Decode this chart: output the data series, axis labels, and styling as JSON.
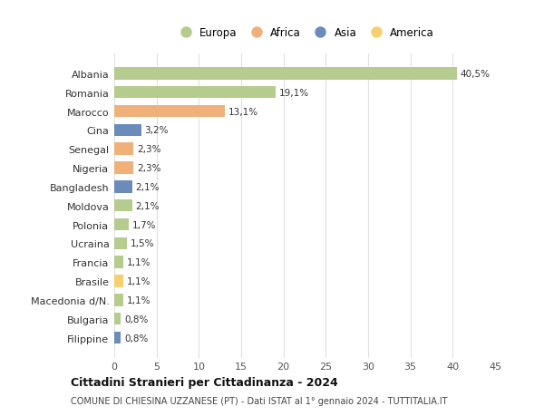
{
  "countries": [
    "Albania",
    "Romania",
    "Marocco",
    "Cina",
    "Senegal",
    "Nigeria",
    "Bangladesh",
    "Moldova",
    "Polonia",
    "Ucraina",
    "Francia",
    "Brasile",
    "Macedonia d/N.",
    "Bulgaria",
    "Filippine"
  ],
  "values": [
    40.5,
    19.1,
    13.1,
    3.2,
    2.3,
    2.3,
    2.1,
    2.1,
    1.7,
    1.5,
    1.1,
    1.1,
    1.1,
    0.8,
    0.8
  ],
  "labels": [
    "40,5%",
    "19,1%",
    "13,1%",
    "3,2%",
    "2,3%",
    "2,3%",
    "2,1%",
    "2,1%",
    "1,7%",
    "1,5%",
    "1,1%",
    "1,1%",
    "1,1%",
    "0,8%",
    "0,8%"
  ],
  "continents": [
    "Europa",
    "Europa",
    "Africa",
    "Asia",
    "Africa",
    "Africa",
    "Asia",
    "Europa",
    "Europa",
    "Europa",
    "Europa",
    "America",
    "Europa",
    "Europa",
    "Asia"
  ],
  "colors": {
    "Europa": "#b5cc8e",
    "Africa": "#f0b07a",
    "Asia": "#6b8cba",
    "America": "#f5d06e"
  },
  "legend_order": [
    "Europa",
    "Africa",
    "Asia",
    "America"
  ],
  "title": "Cittadini Stranieri per Cittadinanza - 2024",
  "subtitle": "COMUNE DI CHIESINA UZZANESE (PT) - Dati ISTAT al 1° gennaio 2024 - TUTTITALIA.IT",
  "xlim": [
    0,
    45
  ],
  "xticks": [
    0,
    5,
    10,
    15,
    20,
    25,
    30,
    35,
    40,
    45
  ],
  "background_color": "#ffffff",
  "grid_color": "#e0e0e0",
  "bar_height": 0.65
}
